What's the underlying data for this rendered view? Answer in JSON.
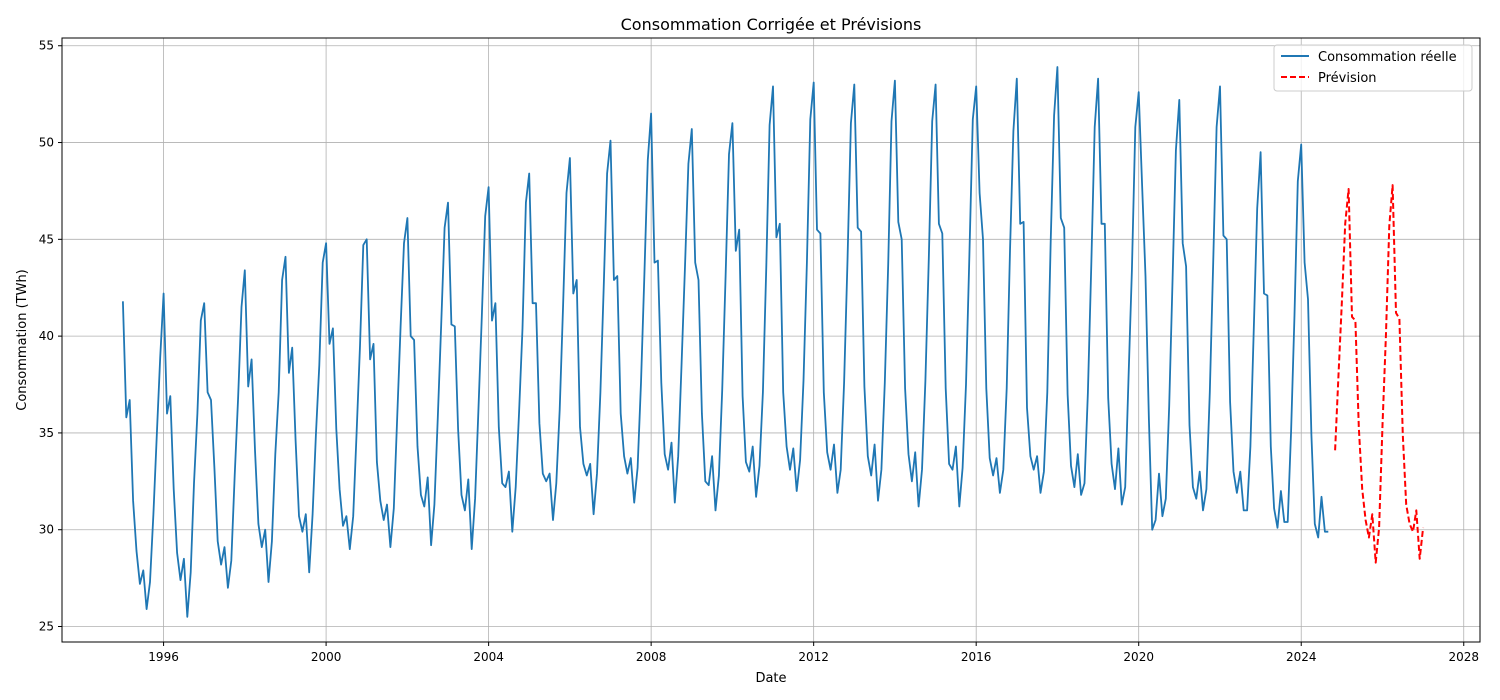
{
  "chart_data": {
    "type": "line",
    "title": "Consommation Corrigée et Prévisions",
    "xlabel": "Date",
    "ylabel": "Consommation (TWh)",
    "xlim": [
      1993.5,
      2028.4
    ],
    "ylim": [
      24.2,
      55.4
    ],
    "xticks": [
      1996,
      2000,
      2004,
      2008,
      2012,
      2016,
      2020,
      2024,
      2028
    ],
    "yticks": [
      25,
      30,
      35,
      40,
      45,
      50,
      55
    ],
    "grid": true,
    "legend_position": "top-right",
    "series": [
      {
        "name": "Consommation réelle",
        "color": "#1f77b4",
        "style": "solid",
        "x_start": "1995-01",
        "values": [
          41.8,
          35.8,
          36.7,
          31.5,
          28.9,
          27.2,
          27.9,
          25.9,
          27.3,
          30.8,
          34.9,
          38.9,
          42.2,
          36.0,
          36.9,
          32.1,
          28.8,
          27.4,
          28.5,
          25.5,
          27.8,
          32.4,
          36.0,
          40.8,
          41.7,
          37.1,
          36.7,
          33.2,
          29.4,
          28.2,
          29.1,
          27.0,
          28.4,
          32.8,
          36.8,
          41.5,
          43.4,
          37.4,
          38.8,
          34.1,
          30.3,
          29.1,
          30.0,
          27.3,
          29.4,
          33.9,
          37.1,
          42.9,
          44.1,
          38.1,
          39.4,
          34.6,
          30.7,
          29.9,
          30.8,
          27.8,
          30.8,
          34.9,
          38.5,
          43.8,
          44.8,
          39.6,
          40.4,
          35.2,
          32.1,
          30.2,
          30.7,
          29.0,
          30.7,
          35.0,
          39.5,
          44.7,
          45.0,
          38.8,
          39.6,
          33.5,
          31.5,
          30.5,
          31.3,
          29.1,
          31.1,
          35.8,
          40.5,
          44.8,
          46.1,
          40.0,
          39.8,
          34.3,
          31.8,
          31.2,
          32.7,
          29.2,
          31.3,
          35.8,
          40.6,
          45.6,
          46.9,
          40.6,
          40.5,
          35.2,
          31.8,
          31.0,
          32.6,
          29.0,
          31.6,
          36.3,
          41.0,
          46.2,
          47.7,
          40.8,
          41.7,
          35.3,
          32.4,
          32.2,
          33.0,
          29.9,
          32.2,
          36.1,
          40.4,
          46.9,
          48.4,
          41.7,
          41.7,
          35.5,
          32.9,
          32.5,
          32.9,
          30.5,
          32.4,
          36.2,
          41.6,
          47.4,
          49.2,
          42.2,
          42.9,
          35.3,
          33.4,
          32.8,
          33.4,
          30.8,
          32.9,
          37.1,
          42.5,
          48.4,
          50.1,
          42.9,
          43.1,
          36.0,
          33.8,
          32.9,
          33.7,
          31.4,
          33.2,
          37.6,
          43.2,
          49.1,
          51.5,
          43.8,
          43.9,
          37.6,
          33.9,
          33.1,
          34.5,
          31.4,
          33.8,
          38.6,
          43.6,
          48.9,
          50.7,
          43.8,
          42.9,
          36.0,
          32.5,
          32.3,
          33.8,
          31.0,
          32.8,
          37.2,
          43.1,
          49.4,
          51.0,
          44.4,
          45.5,
          36.9,
          33.5,
          33.0,
          34.3,
          31.7,
          33.3,
          37.1,
          43.6,
          50.9,
          52.9,
          45.1,
          45.8,
          37.1,
          34.3,
          33.1,
          34.2,
          32.0,
          33.6,
          37.7,
          43.8,
          51.2,
          53.1,
          45.5,
          45.3,
          37.1,
          34.0,
          33.1,
          34.4,
          31.9,
          33.1,
          37.6,
          43.9,
          51.0,
          53.0,
          45.6,
          45.4,
          37.4,
          33.8,
          32.8,
          34.4,
          31.5,
          33.1,
          37.6,
          43.7,
          51.1,
          53.2,
          45.9,
          45.0,
          37.3,
          33.9,
          32.5,
          34.0,
          31.2,
          33.1,
          37.7,
          44.0,
          51.1,
          53.0,
          45.8,
          45.3,
          37.3,
          33.4,
          33.1,
          34.3,
          31.2,
          33.2,
          37.5,
          44.2,
          51.2,
          52.9,
          47.4,
          45.0,
          37.3,
          33.7,
          32.8,
          33.7,
          31.9,
          33.1,
          37.3,
          44.4,
          50.6,
          53.3,
          45.8,
          45.9,
          36.3,
          33.8,
          33.1,
          33.8,
          31.9,
          33.0,
          37.1,
          44.9,
          51.4,
          53.9,
          46.1,
          45.6,
          37.0,
          33.3,
          32.2,
          33.9,
          31.8,
          32.4,
          37.1,
          43.7,
          50.8,
          53.3,
          45.8,
          45.8,
          36.8,
          33.4,
          32.1,
          34.2,
          31.3,
          32.2,
          37.8,
          43.4,
          50.8,
          52.6,
          47.8,
          43.1,
          35.7,
          30.0,
          30.5,
          32.9,
          30.7,
          31.6,
          36.4,
          43.0,
          49.6,
          52.2,
          44.8,
          43.6,
          35.4,
          32.2,
          31.6,
          33.0,
          31.0,
          32.1,
          37.1,
          43.8,
          50.8,
          52.9,
          45.2,
          45.0,
          36.6,
          33.0,
          31.9,
          33.0,
          31.0,
          31.0,
          34.3,
          40.4,
          46.6,
          49.5,
          42.2,
          42.1,
          34.3,
          31.1,
          30.1,
          32.0,
          30.4,
          30.4,
          35.1,
          41.1,
          48.0,
          49.9,
          43.8,
          41.9,
          34.9,
          30.3,
          29.6,
          31.7,
          29.9,
          29.9
        ]
      },
      {
        "name": "Prévision",
        "color": "#ff0000",
        "style": "dashed",
        "x_start": "2024-11",
        "values": [
          34.1,
          38.0,
          41.8,
          45.8,
          47.6,
          41.0,
          40.8,
          35.3,
          32.1,
          30.5,
          29.6,
          30.8,
          28.3,
          30.1,
          35.4,
          40.0,
          45.7,
          47.8,
          41.2,
          40.9,
          34.9,
          31.3,
          30.3,
          29.9,
          31.0,
          28.5,
          30.1
        ]
      }
    ]
  }
}
